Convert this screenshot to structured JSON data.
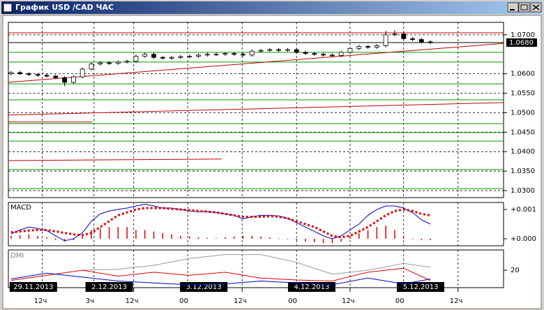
{
  "chart_data": [
    {
      "type": "candlestick",
      "title": "График USD /CAD  ЧАС",
      "open": [
        1.06,
        1.0603,
        1.06,
        1.0598,
        1.0596,
        1.0594,
        1.059,
        1.0578,
        1.0592,
        1.0612,
        1.0625,
        1.0628,
        1.0627,
        1.063,
        1.0632,
        1.0645,
        1.065,
        1.0642,
        1.064,
        1.0642,
        1.0644,
        1.0645,
        1.0648,
        1.065,
        1.065,
        1.0652,
        1.065,
        1.0648,
        1.0658,
        1.066,
        1.0662,
        1.066,
        1.0662,
        1.0655,
        1.0652,
        1.065,
        1.0648,
        1.0647,
        1.0655,
        1.0665,
        1.067,
        1.0668,
        1.0672,
        1.07,
        1.0702,
        1.069,
        1.0688,
        1.0682
      ],
      "high": [
        1.0607,
        1.0607,
        1.0604,
        1.0602,
        1.06,
        1.0598,
        1.0594,
        1.0596,
        1.0616,
        1.0629,
        1.0632,
        1.0632,
        1.0634,
        1.0636,
        1.0649,
        1.0654,
        1.0654,
        1.0646,
        1.0646,
        1.0648,
        1.0649,
        1.0652,
        1.0654,
        1.0654,
        1.0656,
        1.0656,
        1.0654,
        1.0662,
        1.0664,
        1.0666,
        1.0666,
        1.0666,
        1.0666,
        1.0659,
        1.0656,
        1.0654,
        1.0652,
        1.0659,
        1.0669,
        1.0674,
        1.0674,
        1.0676,
        1.071,
        1.0712,
        1.0706,
        1.0694,
        1.0692,
        1.0686
      ],
      "low": [
        1.0596,
        1.0596,
        1.0594,
        1.0592,
        1.059,
        1.0586,
        1.0568,
        1.0574,
        1.0588,
        1.0608,
        1.0621,
        1.0623,
        1.0623,
        1.0626,
        1.0628,
        1.0641,
        1.0638,
        1.0636,
        1.0636,
        1.0638,
        1.064,
        1.0641,
        1.0644,
        1.0646,
        1.0646,
        1.0646,
        1.0644,
        1.0644,
        1.0654,
        1.0656,
        1.0656,
        1.0656,
        1.0651,
        1.0648,
        1.0646,
        1.0644,
        1.0643,
        1.0643,
        1.0651,
        1.0661,
        1.0664,
        1.0664,
        1.0668,
        1.0696,
        1.0686,
        1.0684,
        1.0678,
        1.0676
      ],
      "close": [
        1.0603,
        1.06,
        1.0598,
        1.0596,
        1.0594,
        1.059,
        1.0578,
        1.0592,
        1.0612,
        1.0625,
        1.0628,
        1.0627,
        1.063,
        1.0632,
        1.0645,
        1.065,
        1.0642,
        1.064,
        1.0642,
        1.0644,
        1.0645,
        1.0648,
        1.065,
        1.065,
        1.0652,
        1.065,
        1.0648,
        1.0658,
        1.066,
        1.0662,
        1.066,
        1.0662,
        1.0655,
        1.0652,
        1.065,
        1.0648,
        1.0647,
        1.0655,
        1.0665,
        1.067,
        1.0668,
        1.0672,
        1.07,
        1.0702,
        1.069,
        1.0688,
        1.0682,
        1.068
      ],
      "up_color": "#ffffff",
      "down_color": "#000000",
      "xlim": [
        -0.3,
        55.2
      ],
      "xticks": [
        {
          "value": 3.5,
          "label": "12ч"
        },
        {
          "value": 9.3,
          "label": "3ч"
        },
        {
          "value": 13.75,
          "label": "12ч"
        },
        {
          "value": 19.8,
          "label": "00"
        },
        {
          "value": 25.9,
          "label": "12ч"
        },
        {
          "value": 32,
          "label": "00"
        },
        {
          "value": 38,
          "label": "12ч"
        },
        {
          "value": 44,
          "label": "00"
        },
        {
          "value": 50.1,
          "label": "12ч"
        }
      ],
      "date_labels": [
        {
          "value": 2.5,
          "label": "29.11.2013"
        },
        {
          "value": 11,
          "label": "2.12.2013"
        },
        {
          "value": 21.6,
          "label": "3.12.2013"
        },
        {
          "value": 33.7,
          "label": "4.12.2013"
        },
        {
          "value": 45.9,
          "label": "5.12.2013"
        }
      ],
      "ylim": [
        1.0282,
        1.0732
      ],
      "yticks": [
        {
          "value": 1.07,
          "label": "1.0700"
        },
        {
          "value": 1.06,
          "label": "1.0600"
        },
        {
          "value": 1.055,
          "label": "1.0550"
        },
        {
          "value": 1.05,
          "label": "1.0500"
        },
        {
          "value": 1.045,
          "label": "1.0450"
        },
        {
          "value": 1.04,
          "label": "1.0400"
        },
        {
          "value": 1.035,
          "label": "1.0350"
        },
        {
          "value": 1.03,
          "label": "1.0300"
        }
      ],
      "grid": true,
      "current_price": {
        "value": 1.068,
        "label": "1.0680"
      },
      "levels": [
        {
          "value": 1.0705,
          "color": "#c00000"
        },
        {
          "value": 1.0655,
          "color": "#009900"
        },
        {
          "value": 1.063,
          "color": "#009900"
        },
        {
          "value": 1.0574,
          "color": "#009900"
        },
        {
          "value": 1.0533,
          "color": "#009900"
        },
        {
          "value": 1.0472,
          "color": "#009900"
        },
        {
          "value": 1.0449,
          "color": "#009900"
        },
        {
          "value": 1.0427,
          "color": "#009900"
        },
        {
          "value": 1.0354,
          "color": "#009900"
        },
        {
          "value": 1.0305,
          "color": "#009900"
        }
      ],
      "trendlines": [
        {
          "x": [
            -0.3,
            55.2
          ],
          "y": [
            1.0578,
            1.0678
          ],
          "color": "#c00000"
        },
        {
          "x": [
            -0.3,
            55.2
          ],
          "y": [
            1.0494,
            1.0526
          ],
          "color": "#c00000"
        },
        {
          "x": [
            -0.3,
            9.1
          ],
          "y": [
            1.0476,
            1.0476
          ],
          "color": "#c00000"
        },
        {
          "x": [
            -0.3,
            23.6
          ],
          "y": [
            1.0377,
            1.0381
          ],
          "color": "#c00000"
        }
      ]
    },
    {
      "type": "macd",
      "title": "MACD",
      "ylim": [
        -0.00024,
        0.00124
      ],
      "yticks": [
        {
          "value": 0.001,
          "label": "+0.001"
        },
        {
          "value": 0,
          "label": "+0.000"
        }
      ],
      "series": [
        {
          "style": "histogram",
          "color": "#e00000",
          "values": [
            0.0001,
            0.00012,
            0.00015,
            0.0001,
            5e-05,
            -5e-05,
            -0.0001,
            -5e-05,
            0.0001,
            0.0003,
            0.00035,
            0.0004,
            0.0004,
            0.0004,
            0.0003,
            0.0003,
            0.00025,
            0.0002,
            0.00015,
            0.0001,
            8e-05,
            5e-05,
            3e-05,
            2e-05,
            5e-05,
            8e-05,
            0.0001,
            0.0001,
            8e-05,
            5e-05,
            2e-05,
            -2e-05,
            -5e-05,
            -0.0001,
            -0.00012,
            -0.00015,
            -0.00015,
            -0.0001,
            0.0001,
            0.0002,
            0.0003,
            0.0004,
            0.00045,
            0.0003,
            0.0001,
            -2e-05,
            -5e-05,
            -5e-05
          ]
        },
        {
          "style": "line",
          "color": "#0000c0",
          "values": [
            0.00017,
            0.0003,
            0.0004,
            0.00035,
            0.00028,
            0.0001,
            -7e-05,
            0,
            0.0002,
            0.0006,
            0.00085,
            0.00095,
            0.001,
            0.00105,
            0.00112,
            0.00118,
            0.00112,
            0.00105,
            0.00105,
            0.001,
            0.00095,
            0.00092,
            0.00092,
            0.0009,
            0.00085,
            0.0008,
            0.00068,
            0.00075,
            0.0008,
            0.0008,
            0.00078,
            0.0007,
            0.00055,
            0.0004,
            0.00025,
            0.0001,
            0,
            0.0001,
            0.0003,
            0.0005,
            0.0008,
            0.001,
            0.00112,
            0.00112,
            0.00105,
            0.0009,
            0.00065,
            0.0005
          ]
        },
        {
          "style": "dotted",
          "color": "#e00000",
          "values": [
            0.00022,
            0.00025,
            0.00028,
            0.0003,
            0.0003,
            0.00025,
            0.0002,
            0.00015,
            0.00012,
            0.0002,
            0.0004,
            0.0006,
            0.0008,
            0.0009,
            0.001,
            0.00105,
            0.00105,
            0.00105,
            0.00102,
            0.001,
            0.00098,
            0.00095,
            0.00093,
            0.0009,
            0.00085,
            0.0008,
            0.00075,
            0.00075,
            0.00075,
            0.00077,
            0.00075,
            0.0007,
            0.0006,
            0.0005,
            0.0004,
            0.00025,
            0.0001,
            5e-05,
            0.0001,
            0.00025,
            0.0004,
            0.0006,
            0.0008,
            0.00095,
            0.001,
            0.00095,
            0.00085,
            0.0008
          ]
        }
      ]
    },
    {
      "type": "line",
      "title": "DMI",
      "x": [
        0,
        4,
        8,
        12,
        16,
        20,
        24,
        28,
        32,
        36,
        40,
        44,
        47
      ],
      "ylim": [
        2.2,
        40.7
      ],
      "yticks": [
        20
      ],
      "series": [
        {
          "color": "#999999",
          "values": [
            null,
            null,
            20,
            21,
            25,
            32,
            36,
            36,
            28,
            16,
            20,
            27,
            23
          ]
        },
        {
          "color": "#e00000",
          "values": [
            9.6,
            14.8,
            20,
            14,
            18,
            14.8,
            18,
            12,
            10,
            9,
            18,
            22,
            9.6
          ]
        },
        {
          "color": "#0000c0",
          "values": [
            11,
            17,
            13,
            9,
            7,
            5.2,
            6,
            9,
            7,
            5.2,
            12,
            6,
            11
          ]
        }
      ]
    }
  ]
}
